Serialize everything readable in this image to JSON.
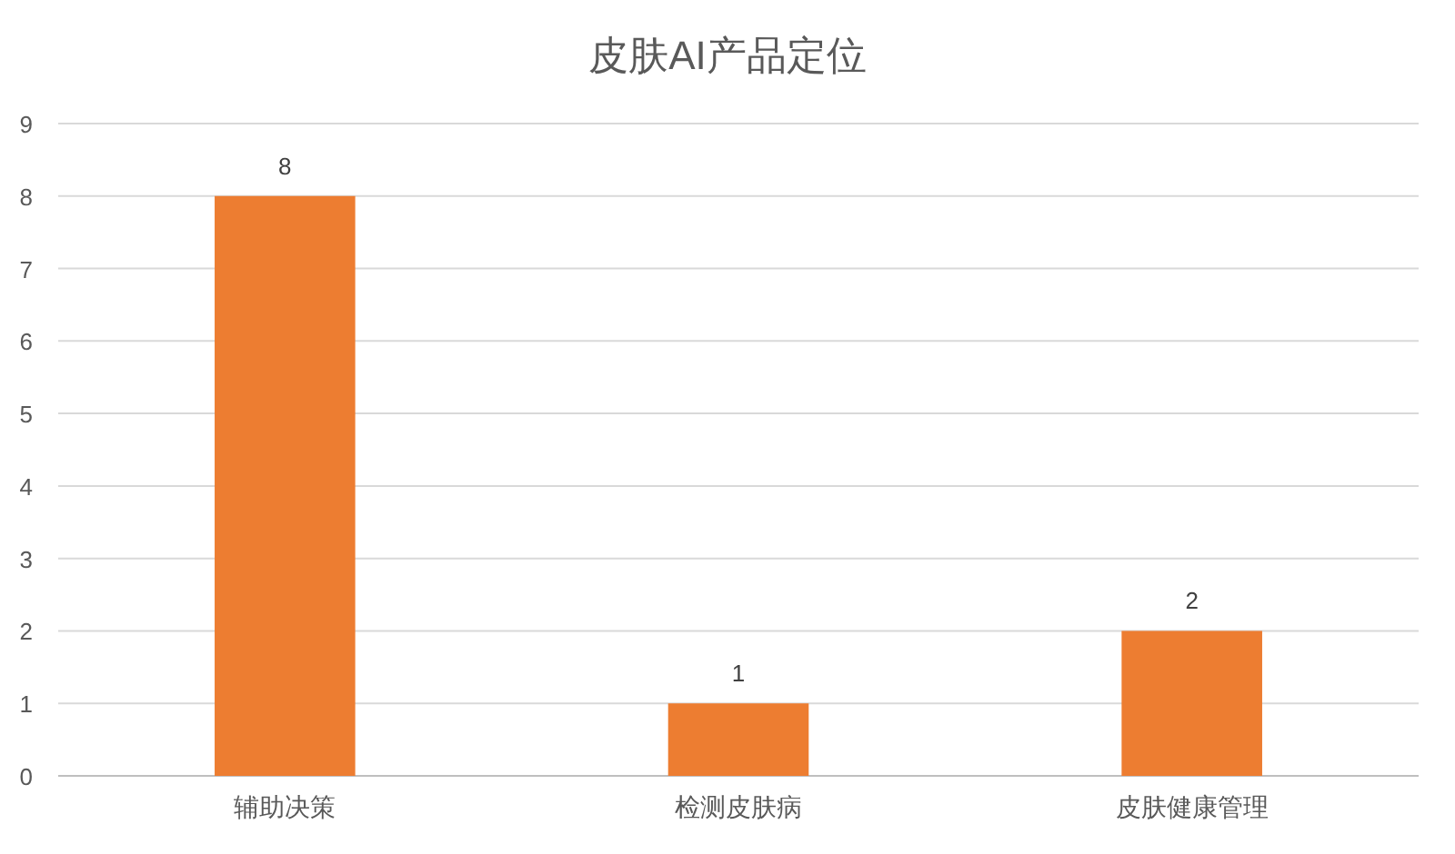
{
  "chart_data": {
    "type": "bar",
    "title": "皮肤AI产品定位",
    "categories": [
      "辅助决策",
      "检测皮肤病",
      "皮肤健康管理"
    ],
    "values": [
      8,
      1,
      2
    ],
    "color": "#ed7d31",
    "ylim": [
      0,
      9
    ],
    "yticks": [
      0,
      1,
      2,
      3,
      4,
      5,
      6,
      7,
      8,
      9
    ],
    "grid": "y",
    "data_labels": true
  }
}
